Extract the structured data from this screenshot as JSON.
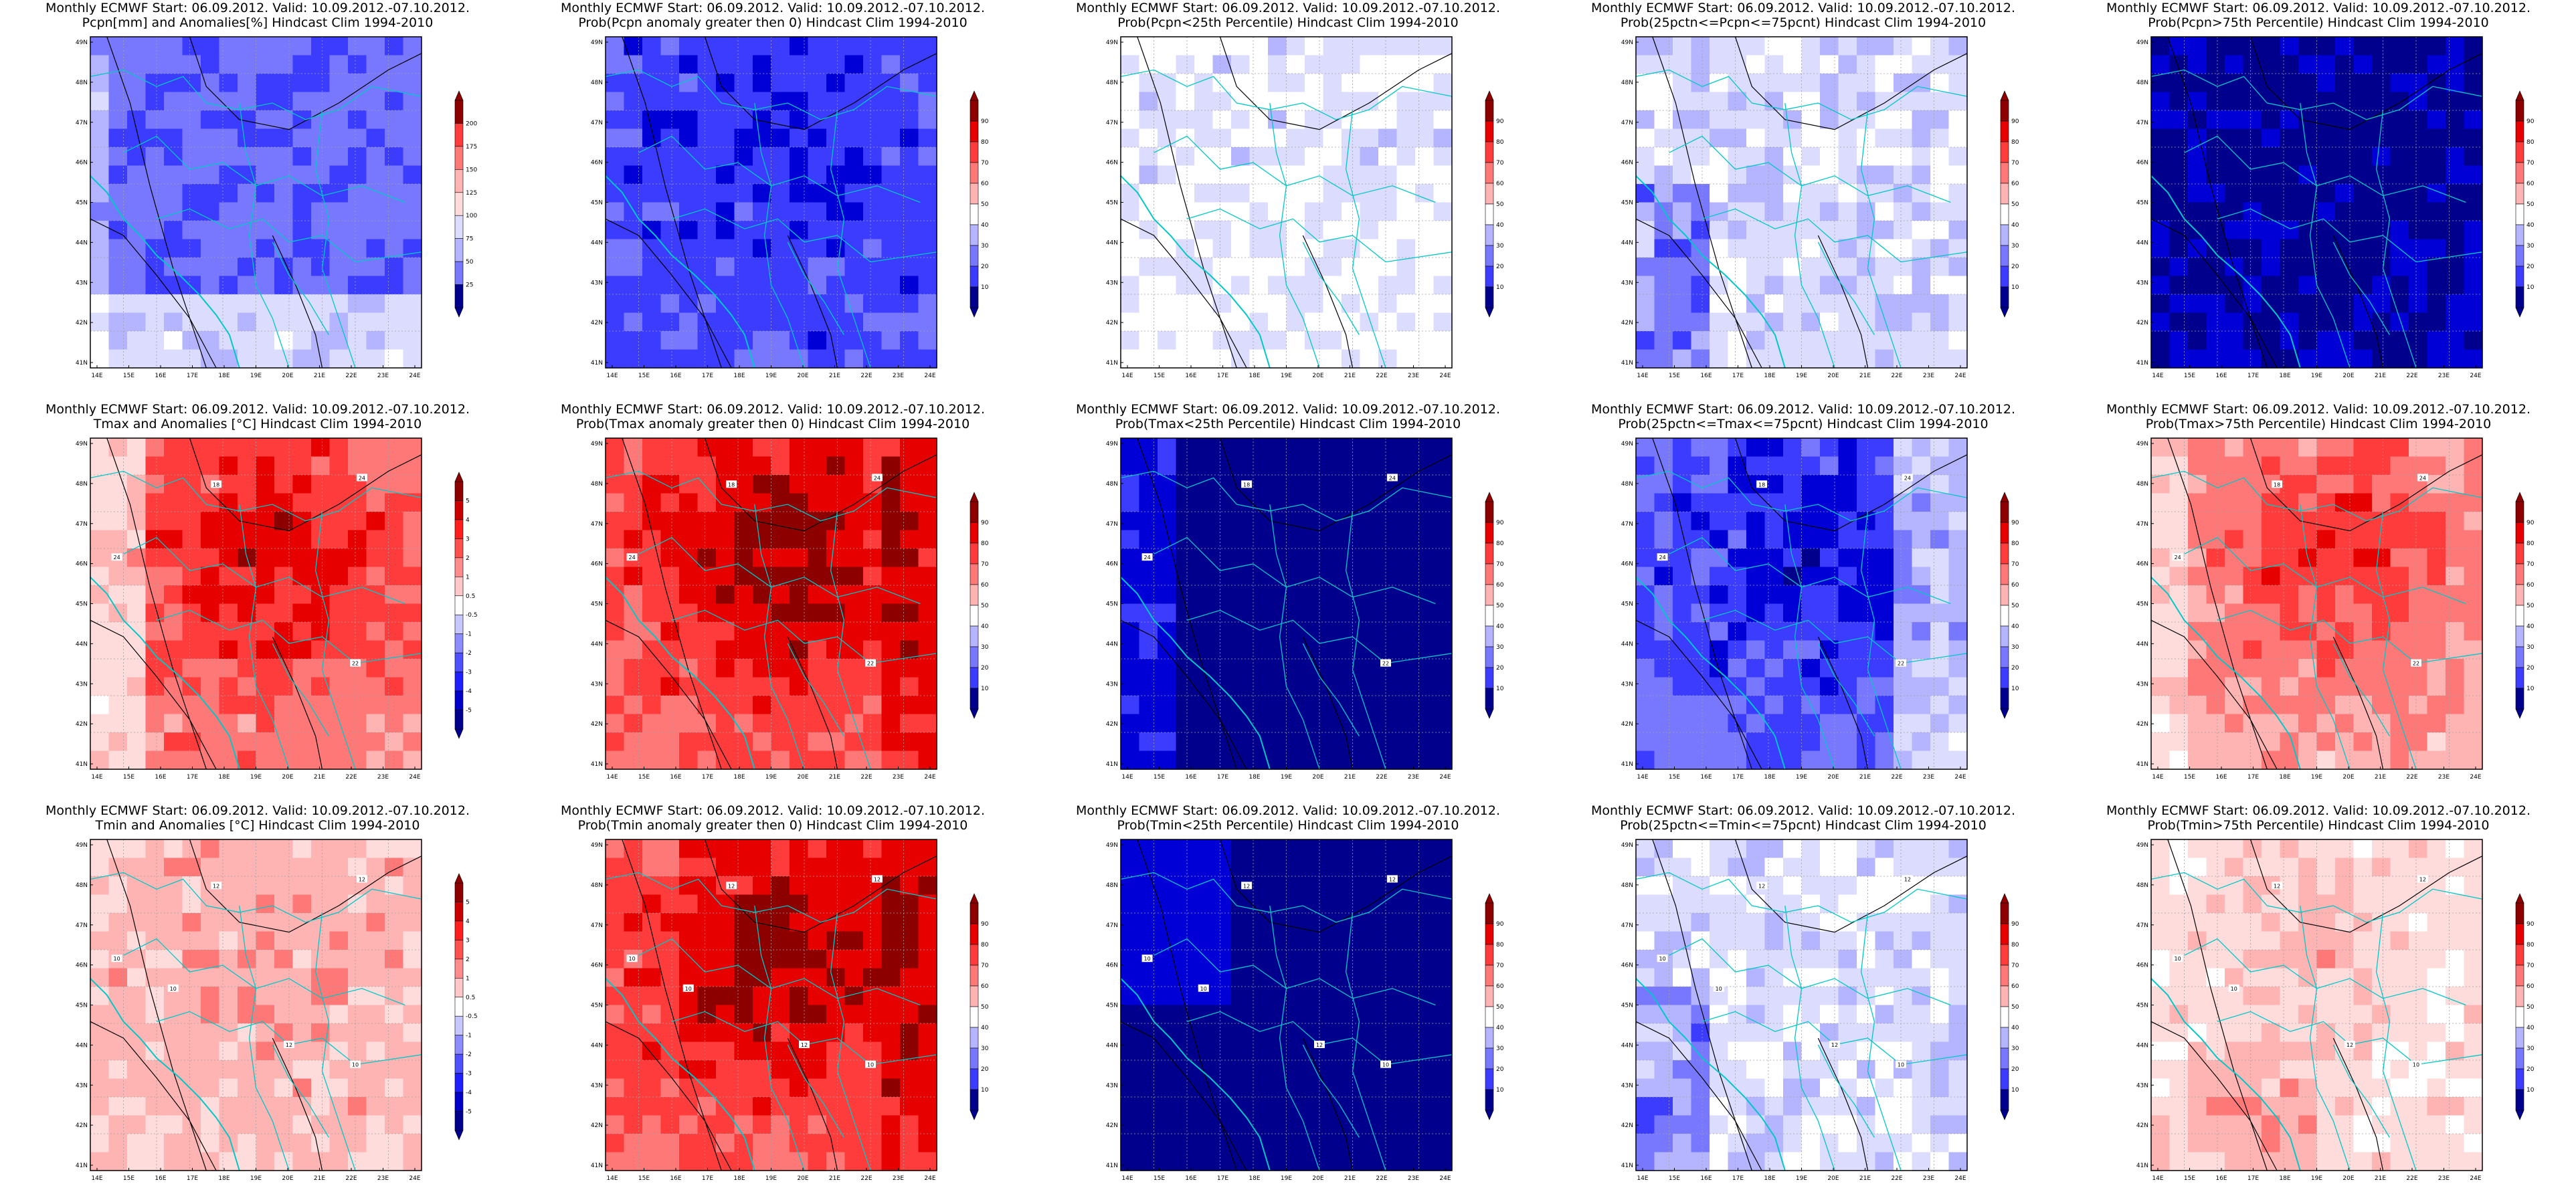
{
  "header": "Monthly ECMWF Start: 06.09.2012. Valid: 10.09.2012.-07.10.2012.",
  "colors": {
    "blue_scale": [
      "#00008c",
      "#0000d6",
      "#3c3cff",
      "#7878ff",
      "#b4b4ff",
      "#dcdcff",
      "#ffffff"
    ],
    "red_scale": [
      "#ffffff",
      "#ffdcdc",
      "#ffb4b4",
      "#ff7878",
      "#ff3c3c",
      "#e60000",
      "#8c0000"
    ],
    "coast": "#00c8c8",
    "contour": "#000000",
    "grid": "#a0a0a0"
  },
  "axes": {
    "lat_labels": [
      "49N",
      "48N",
      "47N",
      "46N",
      "45N",
      "44N",
      "43N",
      "42N",
      "41N"
    ],
    "lon_labels": [
      "14E",
      "15E",
      "16E",
      "17E",
      "18E",
      "19E",
      "20E",
      "21E",
      "22E",
      "23E",
      "24E"
    ]
  },
  "colorbars": {
    "prob": [
      "90",
      "80",
      "70",
      "60",
      "50",
      "40",
      "30",
      "20",
      "10"
    ],
    "pcpn": [
      "200",
      "175",
      "150",
      "125",
      "100",
      "75",
      "50",
      "25"
    ],
    "temp": [
      "5",
      "4",
      "3",
      "2",
      "1",
      "0.5",
      "-0.5",
      "-1",
      "-2",
      "-3",
      "-4",
      "-5"
    ]
  },
  "chart_data": [
    {
      "type": "heatmap",
      "title": "Pcpn[mm] and Anomalies[%] Hindcast Clim 1994-2010",
      "field": "pcpn",
      "colorbar": "pcpn",
      "xlabel": "",
      "ylabel": ""
    },
    {
      "type": "heatmap",
      "title": "Prob(Pcpn anomaly greater then 0) Hindcast Clim 1994-2010",
      "field": "prob_low",
      "colorbar": "prob"
    },
    {
      "type": "heatmap",
      "title": "Prob(Pcpn<25th Percentile) Hindcast Clim 1994-2010",
      "field": "prob_verylow",
      "colorbar": "prob"
    },
    {
      "type": "heatmap",
      "title": "Prob(25pctn<=Pcpn<=75pcnt) Hindcast Clim 1994-2010",
      "field": "prob_verylow2",
      "colorbar": "prob"
    },
    {
      "type": "heatmap",
      "title": "Prob(Pcpn>75th Percentile) Hindcast Clim 1994-2010",
      "field": "prob_deepblue",
      "colorbar": "prob"
    },
    {
      "type": "heatmap",
      "title": "Tmax and Anomalies [°C] Hindcast Clim 1994-2010",
      "field": "temp_warm",
      "colorbar": "temp",
      "contour_labels": [
        "18",
        "24",
        "24",
        "22"
      ]
    },
    {
      "type": "heatmap",
      "title": "Prob(Tmax anomaly greater then 0) Hindcast Clim 1994-2010",
      "field": "prob_hot",
      "colorbar": "prob",
      "contour_labels": [
        "18",
        "24",
        "24",
        "22"
      ]
    },
    {
      "type": "heatmap",
      "title": "Prob(Tmax<25th Percentile) Hindcast Clim 1994-2010",
      "field": "prob_navy",
      "colorbar": "prob",
      "contour_labels": [
        "18",
        "24",
        "24",
        "22"
      ]
    },
    {
      "type": "heatmap",
      "title": "Prob(25pctn<=Tmax<=75pcnt) Hindcast Clim 1994-2010",
      "field": "prob_blue",
      "colorbar": "prob",
      "contour_labels": [
        "18",
        "24",
        "24",
        "22"
      ]
    },
    {
      "type": "heatmap",
      "title": "Prob(Tmax>75th Percentile) Hindcast Clim 1994-2010",
      "field": "prob_red",
      "colorbar": "prob",
      "contour_labels": [
        "18",
        "24",
        "24",
        "22"
      ]
    },
    {
      "type": "heatmap",
      "title": "Tmin and Anomalies [°C] Hindcast Clim 1994-2010",
      "field": "temp_mild",
      "colorbar": "temp",
      "contour_labels": [
        "12",
        "12",
        "10",
        "10",
        "12",
        "10"
      ]
    },
    {
      "type": "heatmap",
      "title": "Prob(Tmin anomaly greater then 0) Hindcast Clim 1994-2010",
      "field": "prob_hot",
      "colorbar": "prob",
      "contour_labels": [
        "12",
        "12",
        "10",
        "10",
        "12",
        "10"
      ]
    },
    {
      "type": "heatmap",
      "title": "Prob(Tmin<25th Percentile) Hindcast Clim 1994-2010",
      "field": "prob_navy2",
      "colorbar": "prob",
      "contour_labels": [
        "12",
        "12",
        "10",
        "10",
        "12",
        "10"
      ]
    },
    {
      "type": "heatmap",
      "title": "Prob(25pctn<=Tmin<=75pcnt) Hindcast Clim 1994-2010",
      "field": "prob_verylow2",
      "colorbar": "prob",
      "contour_labels": [
        "12",
        "12",
        "10",
        "10",
        "12",
        "10"
      ]
    },
    {
      "type": "heatmap",
      "title": "Prob(Tmin>75th Percentile) Hindcast Clim 1994-2010",
      "field": "prob_pink",
      "colorbar": "prob",
      "contour_labels": [
        "12",
        "12",
        "10",
        "10",
        "12",
        "10"
      ]
    }
  ]
}
